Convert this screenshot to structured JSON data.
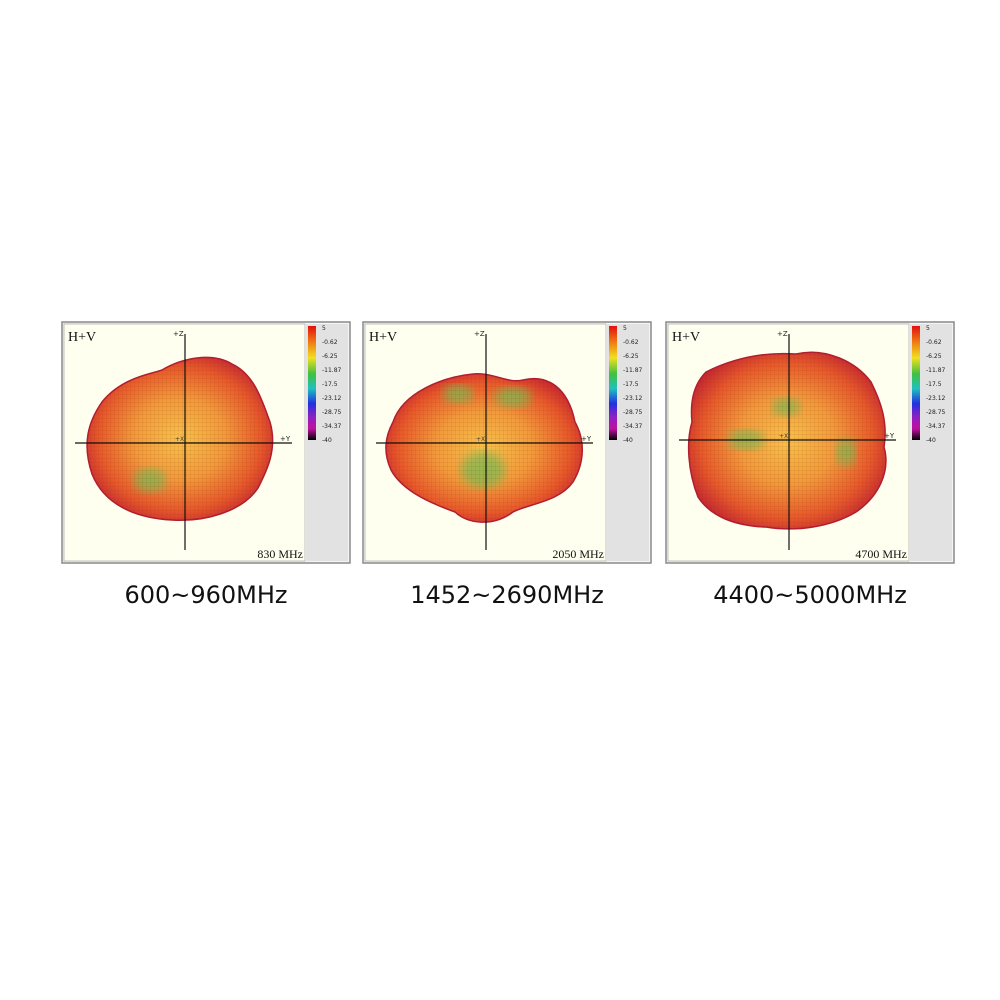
{
  "panels": [
    {
      "mode": "H+V",
      "axis_z": "+Z",
      "axis_y": "+Y",
      "axis_x": "+X",
      "frequency": "830 MHz",
      "caption": "600~960MHz",
      "scale": [
        "5",
        "-0.62",
        "-6.25",
        "-11.87",
        "-17.5",
        "-23.12",
        "-28.75",
        "-34.37",
        "-40"
      ]
    },
    {
      "mode": "H+V",
      "axis_z": "+Z",
      "axis_y": "+Y",
      "axis_x": "+X",
      "frequency": "2050 MHz",
      "caption": "1452~2690MHz",
      "scale": [
        "5",
        "-0.62",
        "-6.25",
        "-11.87",
        "-17.5",
        "-23.12",
        "-28.75",
        "-34.37",
        "-40"
      ]
    },
    {
      "mode": "H+V",
      "axis_z": "+Z",
      "axis_y": "+Y",
      "axis_x": "+X",
      "frequency": "4700 MHz",
      "caption": "4400~5000MHz",
      "scale": [
        "5",
        "-0.62",
        "-6.25",
        "-11.87",
        "-17.5",
        "-23.12",
        "-28.75",
        "-34.37",
        "-40"
      ]
    }
  ]
}
